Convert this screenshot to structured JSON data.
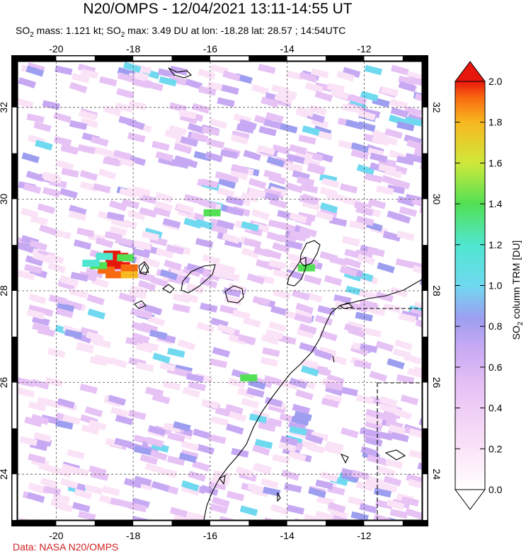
{
  "title": "N20/OMPS - 12/04/2021 13:11-14:55 UT",
  "subtitle": {
    "mass_prefix": "SO",
    "mass_sub": "2",
    "mass_text": " mass: 1.121 kt; SO",
    "max_sub": "2",
    "max_text": " max: 3.49 DU at lon: -18.28 lat: 28.57 ; 14:54UTC"
  },
  "credit": "Data: NASA N20/OMPS",
  "colorbar": {
    "label_prefix": "SO",
    "label_sub": "2",
    "label_suffix": " column TRM [DU]",
    "ticks": [
      "0.0",
      "0.2",
      "0.4",
      "0.6",
      "0.8",
      "1.0",
      "1.2",
      "1.4",
      "1.6",
      "1.8",
      "2.0"
    ],
    "colors": [
      "#ffffff",
      "#fbe3f7",
      "#e7c2f5",
      "#c7a9f3",
      "#9d9ef0",
      "#6fd9f0",
      "#4fe6d0",
      "#52e054",
      "#cfe83a",
      "#f8b820",
      "#f86a10",
      "#e8170d"
    ]
  },
  "chart_data": {
    "type": "heatmap",
    "title": "N20/OMPS - 12/04/2021 13:11-14:55 UT",
    "xlabel": "",
    "ylabel": "",
    "xlim": [
      -21.0,
      -10.5
    ],
    "ylim": [
      23.0,
      33.0
    ],
    "x_ticks": [
      "-20",
      "-18",
      "-16",
      "-14",
      "-12"
    ],
    "y_ticks": [
      "24",
      "26",
      "28",
      "30",
      "32"
    ],
    "grid": true,
    "colorbar_range": [
      0.0,
      2.0
    ],
    "so2_mass_kt": 1.121,
    "so2_max_du": 3.49,
    "so2_max_lon": -18.28,
    "so2_max_lat": 28.57,
    "plume_cells": [
      {
        "lon": -18.55,
        "lat": 28.8,
        "du": 2.0
      },
      {
        "lon": -18.35,
        "lat": 28.75,
        "du": 2.0
      },
      {
        "lon": -18.5,
        "lat": 28.6,
        "du": 1.95
      },
      {
        "lon": -18.3,
        "lat": 28.55,
        "du": 2.0
      },
      {
        "lon": -18.1,
        "lat": 28.5,
        "du": 1.9
      },
      {
        "lon": -18.7,
        "lat": 28.45,
        "du": 1.75
      },
      {
        "lon": -18.5,
        "lat": 28.35,
        "du": 1.8
      },
      {
        "lon": -18.1,
        "lat": 28.35,
        "du": 1.7
      },
      {
        "lon": -18.9,
        "lat": 28.55,
        "du": 1.3
      },
      {
        "lon": -18.75,
        "lat": 28.75,
        "du": 1.1
      },
      {
        "lon": -18.2,
        "lat": 28.72,
        "du": 1.35
      },
      {
        "lon": -19.1,
        "lat": 28.6,
        "du": 1.0
      },
      {
        "lon": -15.0,
        "lat": 26.1,
        "du": 1.3
      },
      {
        "lon": -13.5,
        "lat": 28.5,
        "du": 1.3
      },
      {
        "lon": -15.95,
        "lat": 29.7,
        "du": 1.3
      }
    ]
  }
}
